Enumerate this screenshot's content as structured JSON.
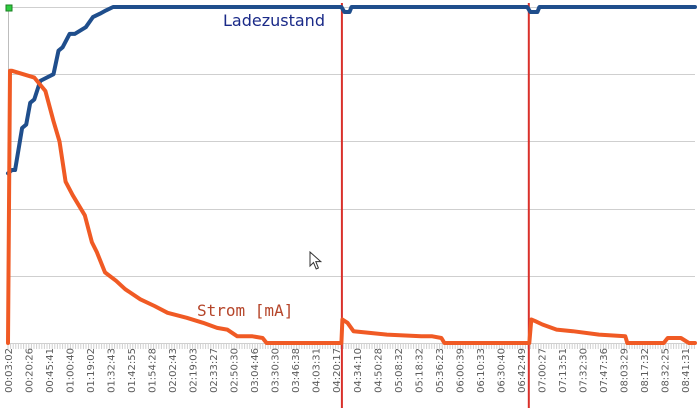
{
  "chart_data": {
    "type": "line",
    "title": "",
    "xlabel": "",
    "ylabel": "",
    "ylim": [
      0,
      100
    ],
    "grid": true,
    "tick_labels": [
      "00:03:02",
      "00:20:26",
      "00:45:41",
      "01:00:40",
      "01:19:02",
      "01:32:43",
      "01:42:55",
      "01:54:28",
      "02:02:43",
      "02:19:03",
      "02:33:27",
      "02:50:30",
      "03:04:46",
      "03:30:30",
      "03:46:38",
      "04:03:31",
      "04:20:17",
      "04:34:10",
      "04:50:28",
      "05:08:32",
      "05:18:32",
      "05:36:23",
      "06:00:39",
      "06:10:33",
      "06:30:40",
      "06:42:49",
      "07:00:27",
      "07:13:51",
      "07:32:30",
      "07:47:36",
      "08:03:29",
      "08:17:32",
      "08:32:25",
      "08:41:31"
    ],
    "series": [
      {
        "name": "Ladezustand",
        "color": "#1f4e8c",
        "x": [
          0,
          0.4,
          0.7,
          1.4,
          1.8,
          2.2,
          2.6,
          3.2,
          4.5,
          5.0,
          5.4,
          6.1,
          6.6,
          7.7,
          8.4,
          9.1,
          9.7,
          10.4,
          11.6,
          12.3,
          13.0,
          14.1,
          15.1,
          16.7,
          18.3,
          21.0,
          24.0,
          33.0,
          33.3,
          33.8,
          34.0,
          36.0,
          51.4,
          51.7,
          52.4,
          52.6,
          56.0,
          68.0
        ],
        "y": [
          50.5,
          51.5,
          51.5,
          64,
          65,
          71.5,
          72.5,
          78,
          80,
          87,
          88,
          92,
          92,
          94,
          97,
          98,
          99,
          100,
          100,
          100,
          100,
          100,
          100,
          100,
          100,
          100,
          100,
          100,
          98.5,
          98.5,
          100,
          100,
          100,
          98.5,
          98.5,
          100,
          100,
          100
        ]
      },
      {
        "name": "Strom [mA]",
        "color": "#f05a24",
        "x": [
          0,
          0.2,
          0.4,
          2.6,
          3.7,
          4.5,
          5.1,
          5.7,
          6.4,
          7.6,
          8.3,
          8.8,
          9.6,
          10.7,
          11.6,
          13.1,
          14.5,
          15.8,
          17.7,
          19.3,
          20.7,
          21.7,
          22.7,
          24.2,
          25.2,
          25.6,
          33.0,
          33.1,
          33.6,
          34.2,
          35.8,
          37.5,
          40.9,
          42.0,
          42.9,
          43.2,
          51.6,
          51.8,
          52.2,
          52.9,
          54.3,
          55.9,
          58.5,
          61.1,
          61.3,
          64.6,
          64.9,
          65.3,
          66.6,
          67.4,
          68.0
        ],
        "y": [
          0,
          81,
          81,
          79,
          75,
          66,
          60,
          48,
          44,
          38,
          30,
          27,
          21,
          18.5,
          16,
          13,
          11,
          9,
          7.5,
          6,
          4.5,
          4,
          2,
          2,
          1.5,
          0,
          0,
          7,
          6,
          3.5,
          3,
          2.5,
          2,
          2,
          1.5,
          0,
          0,
          7,
          6.5,
          5.5,
          4,
          3.5,
          2.5,
          2,
          0,
          0,
          0,
          1.5,
          1.5,
          0,
          0
        ]
      }
    ],
    "annotations": [
      {
        "text": "Ladezustand",
        "color": "#1a2a88"
      },
      {
        "text": "Strom [mA]",
        "color": "#b5452a"
      }
    ],
    "markers": [
      33.05,
      51.55
    ]
  }
}
